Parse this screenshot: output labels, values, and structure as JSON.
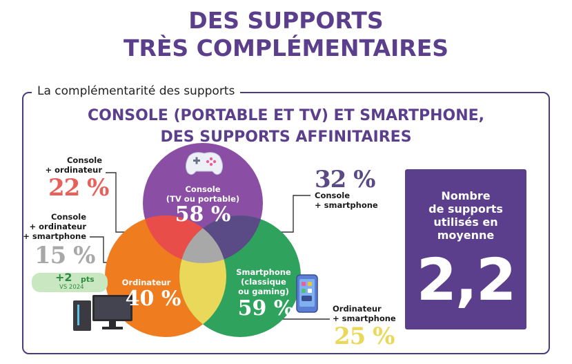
{
  "title": {
    "line1": "DES SUPPORTS",
    "line2": "TRÈS COMPLÉMENTAIRES"
  },
  "section_label": "La complémentarité des supports",
  "subtitle": {
    "line1": "CONSOLE (PORTABLE ET TV) ET SMARTPHONE,",
    "line2": "DES SUPPORTS AFFINITAIRES"
  },
  "colors": {
    "console": "#8a4fa4",
    "ordinateur": "#ef7d1f",
    "smartphone": "#2fa35e",
    "console_ordinateur": "#e84d4a",
    "console_smartphone": "#5a4a86",
    "ordinateur_smartphone": "#e9d85a",
    "all_three": "#a8a8a8",
    "title": "#5b3f8c",
    "badge": "#2e8a3e"
  },
  "chart_data": {
    "type": "venn",
    "sets": [
      {
        "key": "console",
        "label_line1": "Console",
        "label_line2": "(TV ou portable)",
        "value_label": "58 %",
        "value": 58
      },
      {
        "key": "ordinateur",
        "label_line1": "Ordinateur",
        "value_label": "40 %",
        "value": 40
      },
      {
        "key": "smartphone",
        "label_line1": "Smartphone",
        "label_line2": "(classique",
        "label_line3": "ou gaming)",
        "value_label": "59 %",
        "value": 59
      }
    ],
    "intersections": [
      {
        "key": "console_ordinateur",
        "label_line1": "Console",
        "label_line2": "+ ordinateur",
        "value_label": "22 %",
        "value": 22
      },
      {
        "key": "console_smartphone",
        "label_line1": "Console",
        "label_line2": "+ smartphone",
        "value_label": "32 %",
        "value": 32
      },
      {
        "key": "all_three",
        "label_line1": "Console",
        "label_line2": "+ ordinateur",
        "label_line3": "+ smartphone",
        "value_label": "15 %",
        "value": 15
      },
      {
        "key": "ordinateur_smartphone",
        "label_line1": "Ordinateur",
        "label_line2": "+ smartphone",
        "value_label": "25 %",
        "value": 25
      }
    ],
    "trend_badge": {
      "value": "+2",
      "unit": "pts",
      "sub": "VS 2024",
      "icon": "trend-arrow-icon"
    }
  },
  "stat": {
    "label_line1": "Nombre",
    "label_line2": "de supports",
    "label_line3": "utilisés en",
    "label_line4": "moyenne",
    "value": "2,2"
  },
  "icons": [
    "gamepad-icon",
    "computer-icon",
    "smartphone-icon",
    "trend-arrow-icon"
  ]
}
